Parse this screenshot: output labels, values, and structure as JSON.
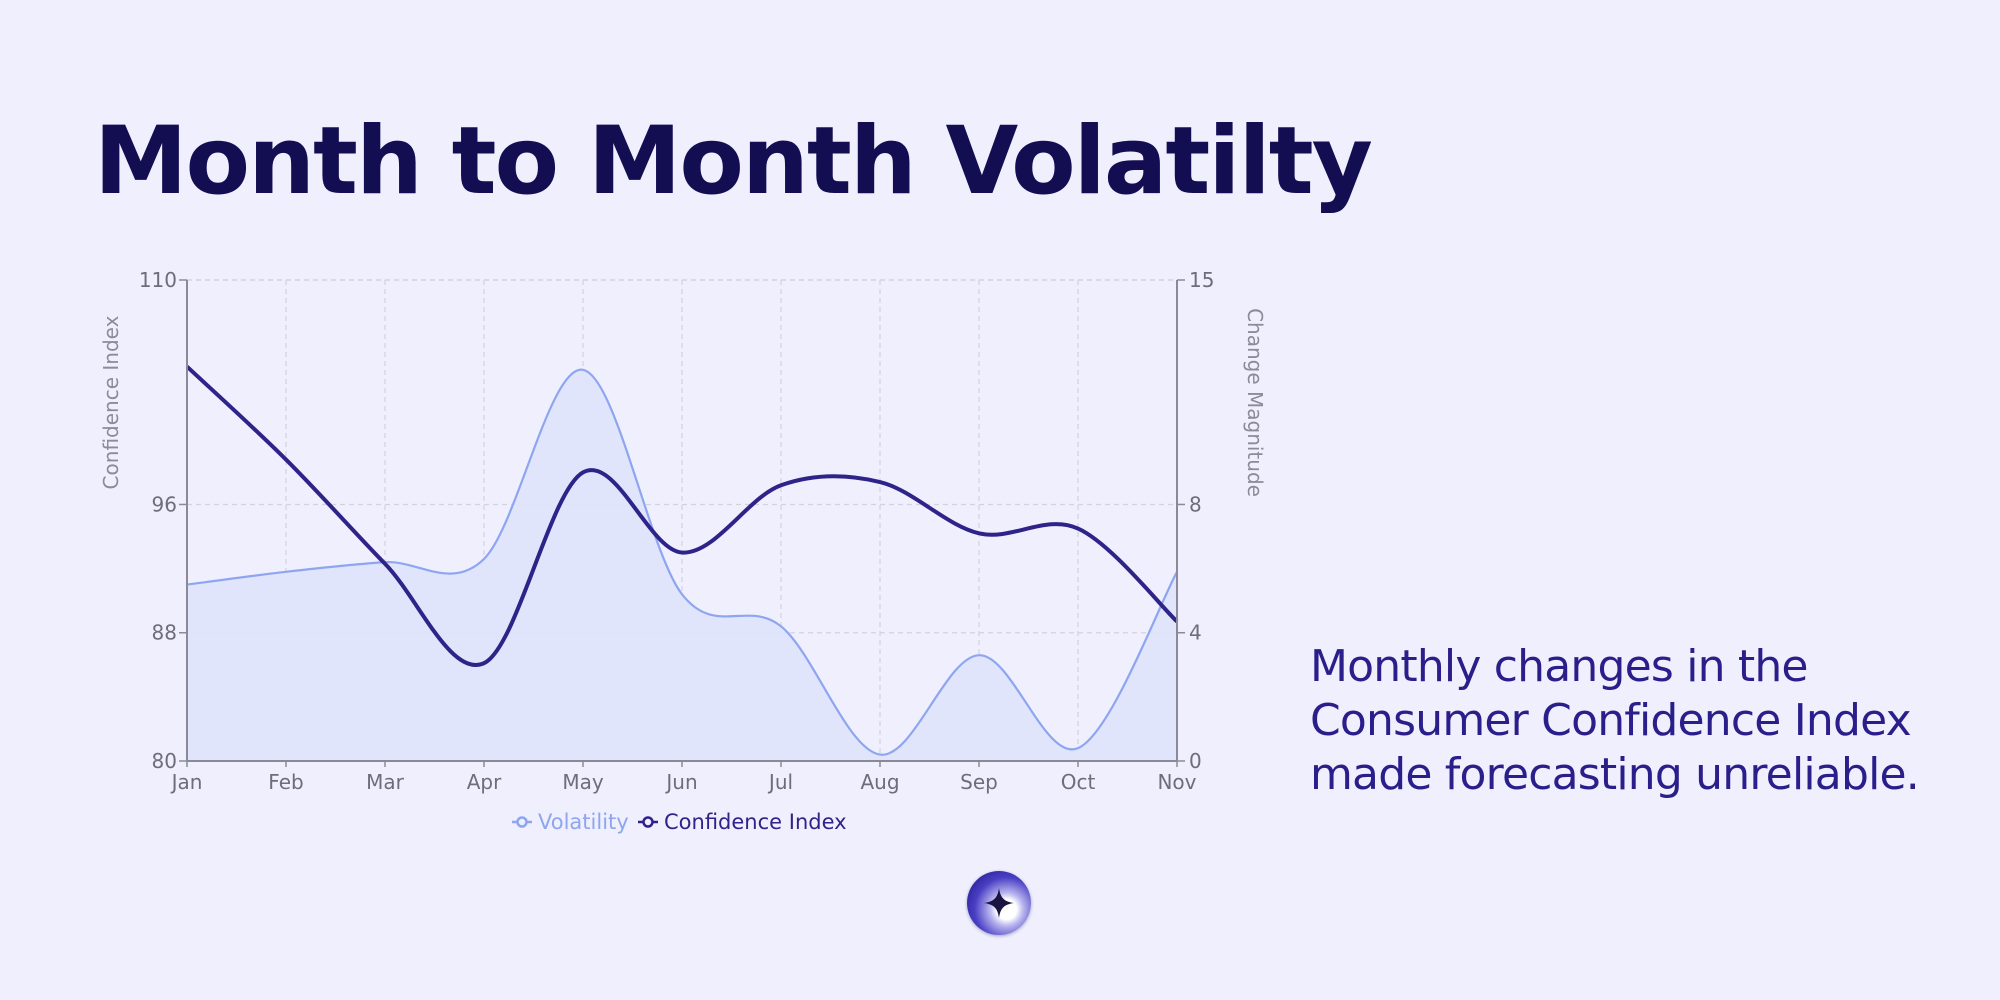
{
  "slide": {
    "title": "Month to Month Volatilty",
    "caption": "Monthly changes in the Consumer Confidence Index made forecasting unreliable."
  },
  "colors": {
    "background": "#efeffd",
    "title": "#130d52",
    "caption": "#2a1f8a",
    "volatility": "#8ea6f0",
    "volatility_fill": "#dfe4fb",
    "confidence_index": "#2e2388",
    "grid": "#d2d2de",
    "axis": "#8a8a96"
  },
  "logo": {
    "icon": "sparkle-star-icon"
  },
  "chart_data": {
    "type": "line",
    "categories": [
      "Jan",
      "Feb",
      "Mar",
      "Apr",
      "May",
      "Jun",
      "Jul",
      "Aug",
      "Sep",
      "Oct",
      "Nov"
    ],
    "y_left": {
      "label": "Confidence Index",
      "range": [
        80,
        110
      ],
      "ticks": [
        80,
        88,
        96,
        110
      ]
    },
    "y_right": {
      "label": "Change Magnitude",
      "range": [
        0,
        15
      ],
      "ticks": [
        0,
        4,
        8,
        15
      ]
    },
    "series": [
      {
        "name": "Volatility",
        "axis": "right",
        "style": "area",
        "values": [
          5.5,
          5.9,
          6.2,
          6.3,
          12.2,
          5.2,
          4.2,
          0.2,
          3.3,
          0.4,
          5.9
        ]
      },
      {
        "name": "Confidence Index",
        "axis": "left",
        "style": "line",
        "values": [
          104.6,
          98.8,
          92.3,
          86.1,
          98.0,
          93.0,
          97.2,
          97.4,
          94.2,
          94.5,
          88.7
        ]
      }
    ],
    "grid": true,
    "legend": "bottom-center"
  }
}
